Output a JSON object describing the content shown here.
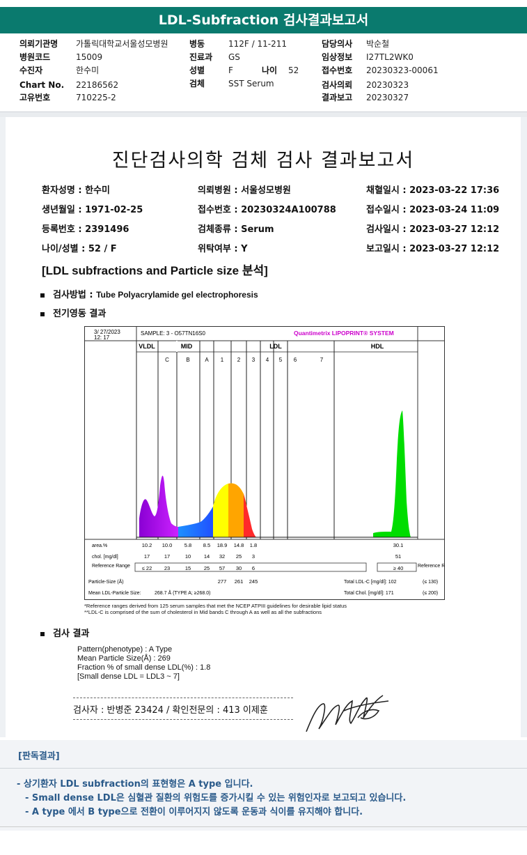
{
  "header": {
    "title": "LDL-Subfraction 검사결과보고서",
    "fields": [
      {
        "label": "의뢰기관명",
        "value": "가톨릭대학교서울성모병원"
      },
      {
        "label": "병원코드",
        "value": "15009"
      },
      {
        "label": "수진자",
        "value": "한수미"
      },
      {
        "label": "Chart No.",
        "value": "22186562"
      },
      {
        "label": "고유번호",
        "value": "710225-2"
      },
      {
        "label": "병동",
        "value": "112F / 11-211"
      },
      {
        "label": "진료과",
        "value": "GS"
      },
      {
        "label": "성별",
        "value": "F"
      },
      {
        "label": "나이",
        "value": "52"
      },
      {
        "label": "검체",
        "value": "SST Serum"
      },
      {
        "label": "담당의사",
        "value": "박순철"
      },
      {
        "label": "임상정보",
        "value": "I27TL2WK0"
      },
      {
        "label": "접수번호",
        "value": "20230323-00061"
      },
      {
        "label": "검사의뢰",
        "value": "20230323"
      },
      {
        "label": "결과보고",
        "value": "20230327"
      }
    ]
  },
  "report": {
    "title": "진단검사의학 검체 검사 결과보고서",
    "info": [
      {
        "label": "환자성명",
        "value": "한수미"
      },
      {
        "label": "생년월일",
        "value": "1971-02-25"
      },
      {
        "label": "등록번호",
        "value": "2391496"
      },
      {
        "label": "나이/성별",
        "value": "52 / F"
      },
      {
        "label": "의뢰병원",
        "value": "서울성모병원"
      },
      {
        "label": "접수번호",
        "value": "20230324A100788"
      },
      {
        "label": "검체종류",
        "value": "Serum"
      },
      {
        "label": "위탁여부",
        "value": "Y"
      },
      {
        "label": "채혈일시",
        "value": "2023-03-22 17:36"
      },
      {
        "label": "접수일시",
        "value": "2023-03-24 11:09"
      },
      {
        "label": "검사일시",
        "value": "2023-03-27 12:12"
      },
      {
        "label": "보고일시",
        "value": "2023-03-27 12:12"
      }
    ],
    "subtitle": "[LDL subfractions and Particle size 분석]",
    "method_label": "검사방법",
    "method_value": "Tube Polyacrylamide gel electrophoresis",
    "electro_label": "전기영동 결과",
    "result_label": "검사 결과",
    "results": [
      "Pattern(phenotype) : A Type",
      "Mean Particle Size(Å) : 269",
      "Fraction % of small dense LDL(%) : 1.8",
      "[Small dense LDL = LDL3 ~ 7]"
    ],
    "examiner": "검사자 : 반병준  23424  /  확인전문의 : 413  이제훈",
    "footnote1": "*Reference ranges derived from 125 serum samples that met the NCEP ATPIII guidelines for desirable lipid status",
    "footnote2": "**LDL-C is comprised of the sum of cholesterol in Mid bands C through A as well as all the subfractions"
  },
  "chart_data": {
    "type": "area",
    "title": "Quantimetrix LIPOPRINT® SYSTEM",
    "sample": "SAMPLE:  3 - O57TN16S0",
    "date": "3/ 27/2023",
    "time": "12: 17",
    "groups": [
      "VLDL",
      "MID",
      "LDL",
      "HDL"
    ],
    "bands": [
      "C",
      "B",
      "A",
      "1",
      "2",
      "3",
      "4",
      "5",
      "6",
      "7"
    ],
    "fractions": [
      "VLDL",
      "C",
      "B",
      "A",
      "1",
      "2",
      "3",
      "4",
      "5",
      "6",
      "7",
      "HDL"
    ],
    "row_labels": {
      "area": "area.%",
      "chol": "chol. [mg/dl]",
      "ref": "Reference Range",
      "psize": "Particle-Size (Å)",
      "mean": "Mean LDL-Particle Size:"
    },
    "area_pct": [
      "10.2",
      "10.0",
      "5.8",
      "8.5",
      "18.9",
      "14.8",
      "1.8",
      "30.1"
    ],
    "chol": [
      "17",
      "17",
      "10",
      "14",
      "32",
      "25",
      "3",
      "51"
    ],
    "ref_range": [
      "≤ 22",
      "23",
      "15",
      "25",
      "57",
      "30",
      "6",
      "≥ 40"
    ],
    "particle_size": [
      "277",
      "261",
      "245"
    ],
    "mean_size_text": "268.7 Å  (TYPE A; ≥268.0)",
    "total_ldl": "Total LDL-C [mg/dl]:  102",
    "total_ldl_ref": "(≤ 130)",
    "total_chol": "Total Chol. [mg/dl]:  171",
    "total_chol_ref": "(≤ 200)",
    "ref_right": "Reference Range",
    "colors": {
      "vldl": "#a020f0",
      "mid": "#1e90ff",
      "ldl1": "#ffff00",
      "ldl2": "#ffa500",
      "ldl3": "#ff2a2a",
      "hdl": "#00dd00",
      "title": "#cc00cc"
    }
  },
  "judgement": {
    "heading": "[판독결과]",
    "lines": [
      "- 상기환자 LDL subfraction의 표현형은 A type 입니다.",
      "-  Small dense LDL은 심혈관 질환의 위험도를 증가시킬 수 있는 위험인자로 보고되고 있습니다.",
      "-  A type 에서 B type으로 전환이 이루어지지 않도록 운동과 식이를 유지해야 합니다."
    ]
  }
}
